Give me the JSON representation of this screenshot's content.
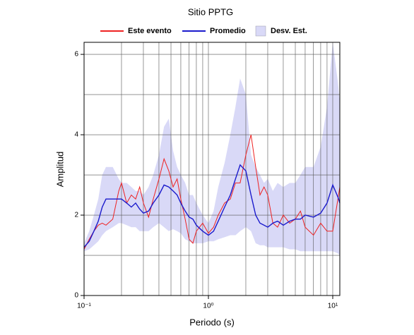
{
  "chart_data": {
    "type": "line",
    "title": "Sitio PPTG",
    "xlabel": "Periodo (s)",
    "ylabel": "Amplitud",
    "xscale": "log",
    "grid": true,
    "legend": "top",
    "xlim": [
      0.1,
      11.4
    ],
    "ylim": [
      0,
      6.3
    ],
    "xticks": [
      {
        "value": 0.1,
        "label": "10⁻¹"
      },
      {
        "value": 1,
        "label": "10⁰"
      },
      {
        "value": 10,
        "label": "10¹"
      }
    ],
    "xminor": [
      0.2,
      0.3,
      0.4,
      0.5,
      0.6,
      0.7,
      0.8,
      0.9,
      2,
      3,
      4,
      5,
      6,
      7,
      8,
      9
    ],
    "yticks": [
      0,
      2,
      4,
      6
    ],
    "yminor": [
      1,
      3,
      5
    ],
    "x": [
      0.1,
      0.11,
      0.12,
      0.13,
      0.14,
      0.15,
      0.17,
      0.19,
      0.2,
      0.22,
      0.24,
      0.26,
      0.28,
      0.3,
      0.33,
      0.36,
      0.4,
      0.44,
      0.48,
      0.52,
      0.56,
      0.6,
      0.65,
      0.7,
      0.75,
      0.8,
      0.9,
      1.0,
      1.1,
      1.2,
      1.35,
      1.5,
      1.65,
      1.8,
      2.0,
      2.2,
      2.4,
      2.6,
      2.8,
      3.0,
      3.3,
      3.6,
      4.0,
      4.5,
      5.0,
      5.5,
      6.0,
      7.0,
      8.0,
      9.0,
      10.0,
      11.0,
      11.4
    ],
    "series": [
      {
        "name": "Este evento",
        "color": "#ee2222",
        "values": [
          1.15,
          1.4,
          1.6,
          1.75,
          1.8,
          1.75,
          1.9,
          2.6,
          2.8,
          2.3,
          2.5,
          2.4,
          2.7,
          2.3,
          1.95,
          2.4,
          2.9,
          3.4,
          3.1,
          2.7,
          2.9,
          2.4,
          1.9,
          1.4,
          1.3,
          1.6,
          1.8,
          1.55,
          1.7,
          2.0,
          2.3,
          2.4,
          2.8,
          2.8,
          3.5,
          4.0,
          3.2,
          2.5,
          2.7,
          2.5,
          1.8,
          1.7,
          2.0,
          1.8,
          1.9,
          2.1,
          1.7,
          1.5,
          1.8,
          1.6,
          1.6,
          2.4,
          2.7
        ]
      },
      {
        "name": "Promedio",
        "color": "#1a1acc",
        "values": [
          1.2,
          1.35,
          1.6,
          1.85,
          2.2,
          2.4,
          2.4,
          2.4,
          2.4,
          2.3,
          2.2,
          2.3,
          2.15,
          2.05,
          2.1,
          2.3,
          2.5,
          2.75,
          2.7,
          2.6,
          2.5,
          2.3,
          2.1,
          1.95,
          1.9,
          1.75,
          1.6,
          1.5,
          1.6,
          1.85,
          2.2,
          2.5,
          2.9,
          3.25,
          3.1,
          2.5,
          2.0,
          1.8,
          1.75,
          1.7,
          1.8,
          1.85,
          1.75,
          1.85,
          1.9,
          1.9,
          2.0,
          1.95,
          2.05,
          2.3,
          2.75,
          2.45,
          2.3
        ]
      },
      {
        "name": "Desv. Est.",
        "color": "#d9d9f7",
        "kind": "band",
        "upper": [
          1.3,
          1.6,
          2.0,
          2.4,
          3.0,
          3.2,
          3.2,
          2.9,
          2.8,
          2.8,
          2.7,
          2.6,
          2.6,
          2.5,
          2.7,
          3.0,
          3.5,
          4.2,
          4.4,
          3.6,
          3.2,
          3.0,
          2.8,
          2.5,
          2.5,
          2.3,
          2.0,
          1.8,
          2.1,
          2.7,
          3.3,
          4.0,
          4.7,
          5.4,
          5.0,
          3.5,
          3.2,
          3.0,
          2.8,
          2.9,
          2.6,
          2.8,
          2.7,
          2.8,
          2.8,
          3.0,
          3.2,
          3.2,
          3.7,
          4.7,
          6.3,
          5.3,
          4.8
        ],
        "lower": [
          1.1,
          1.15,
          1.25,
          1.35,
          1.5,
          1.6,
          1.7,
          1.8,
          1.8,
          1.75,
          1.7,
          1.7,
          1.6,
          1.6,
          1.6,
          1.7,
          1.8,
          1.7,
          1.6,
          1.65,
          1.6,
          1.55,
          1.4,
          1.35,
          1.3,
          1.3,
          1.3,
          1.35,
          1.35,
          1.4,
          1.45,
          1.5,
          1.5,
          1.6,
          1.7,
          1.6,
          1.3,
          1.25,
          1.25,
          1.2,
          1.2,
          1.2,
          1.2,
          1.15,
          1.15,
          1.1,
          1.1,
          1.1,
          1.1,
          1.1,
          1.1,
          1.05,
          1.0
        ]
      }
    ]
  }
}
